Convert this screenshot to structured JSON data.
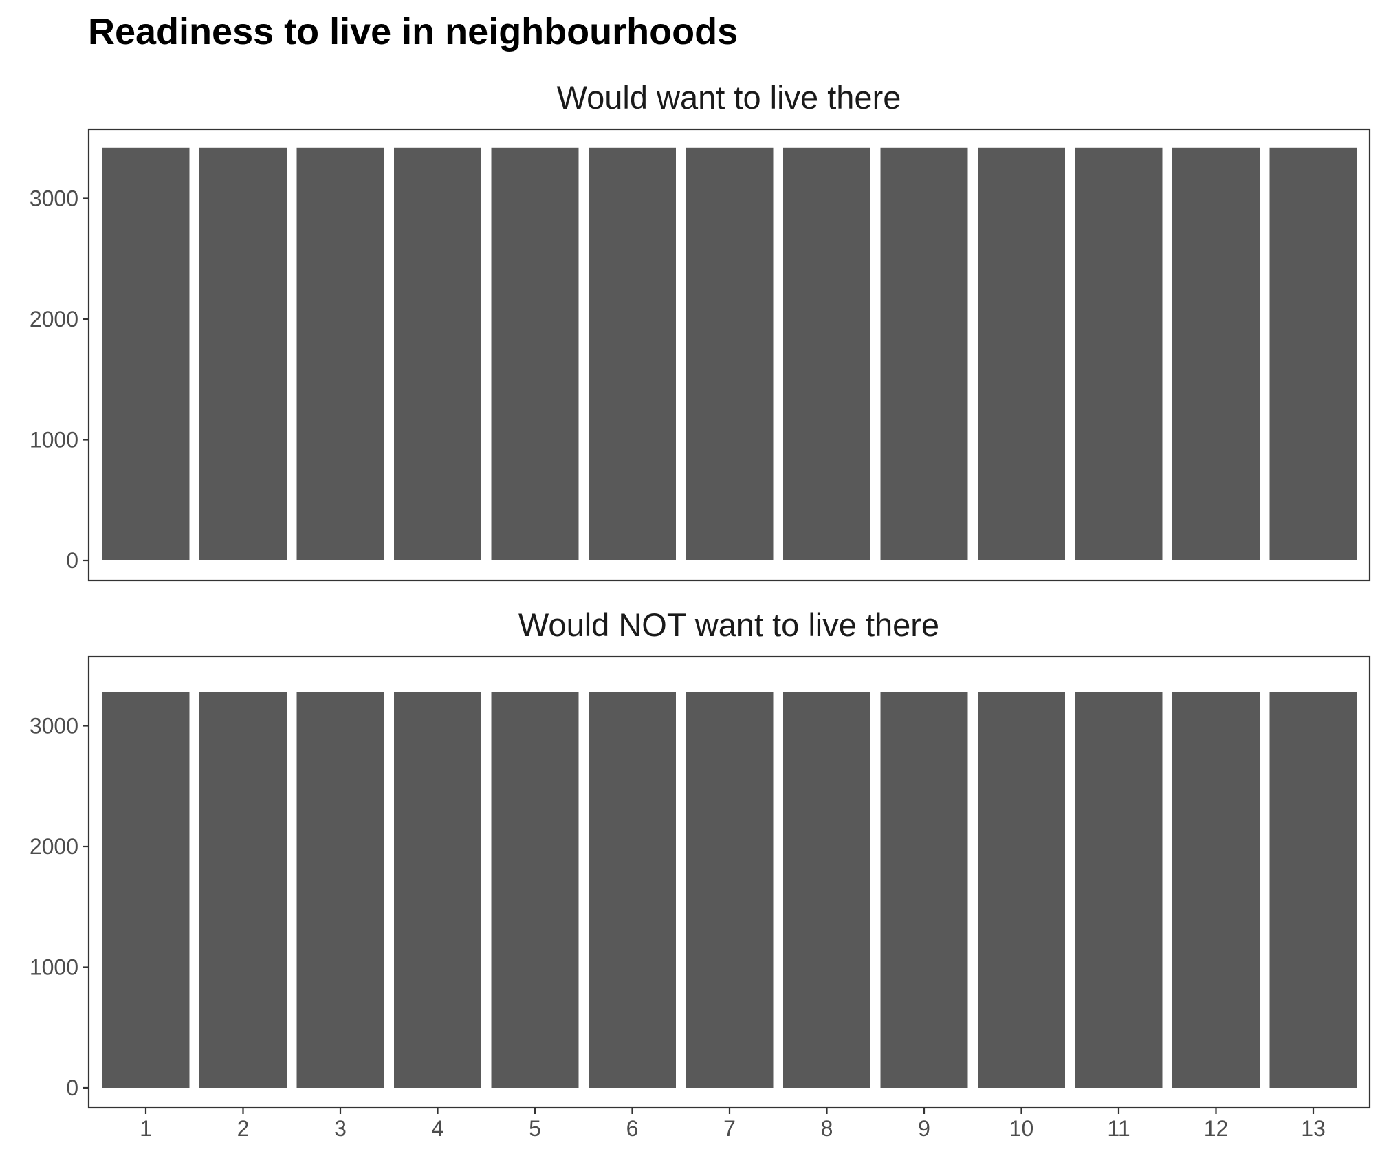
{
  "chart_data": {
    "type": "bar",
    "title": "Readiness to live in neighbourhoods",
    "xlabel": "",
    "ylabel": "",
    "categories": [
      "1",
      "2",
      "3",
      "4",
      "5",
      "6",
      "7",
      "8",
      "9",
      "10",
      "11",
      "12",
      "13"
    ],
    "ylim": [
      0,
      3600
    ],
    "yticks": [
      "0",
      "1000",
      "2000",
      "3000"
    ],
    "bar_color": "#595959",
    "grid": false,
    "facets": [
      {
        "label": "Would want to live there",
        "values": [
          3420,
          3420,
          3420,
          3420,
          3420,
          3420,
          3420,
          3420,
          3420,
          3420,
          3420,
          3420,
          3420
        ]
      },
      {
        "label": "Would NOT want to live there",
        "values": [
          3280,
          3280,
          3280,
          3280,
          3280,
          3280,
          3280,
          3280,
          3280,
          3280,
          3280,
          3280,
          3280
        ]
      }
    ]
  }
}
